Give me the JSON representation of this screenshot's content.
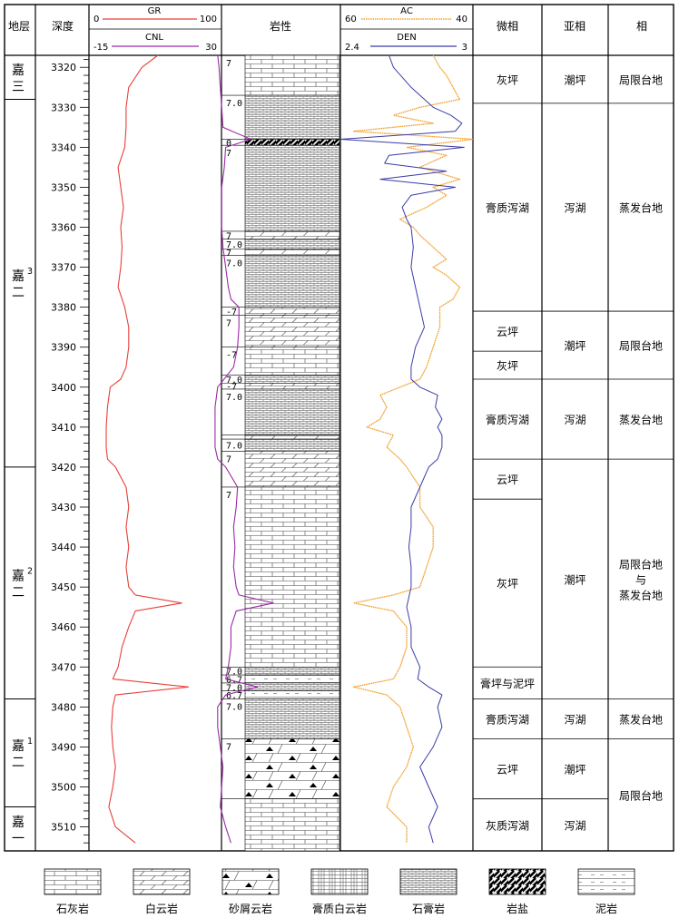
{
  "headers": {
    "stratum": "地层",
    "depth": "深度",
    "lithology": "岩性",
    "microfacies": "微相",
    "subfacies": "亚相",
    "facies": "相"
  },
  "colors": {
    "gr": "#e8403a",
    "cnl": "#9b2aa6",
    "ac": "#f2a12e",
    "den": "#3b3ba8"
  },
  "chart_data": {
    "type": "line",
    "depth_axis": {
      "range": [
        3317,
        3516
      ],
      "ticks": [
        3320,
        3330,
        3340,
        3350,
        3360,
        3370,
        3380,
        3390,
        3400,
        3410,
        3420,
        3430,
        3440,
        3450,
        3460,
        3470,
        3480,
        3490,
        3500,
        3510
      ]
    },
    "track1": {
      "series": [
        {
          "name": "GR",
          "scale": [
            0,
            100
          ],
          "scale_labels": [
            "0",
            "100"
          ]
        },
        {
          "name": "CNL",
          "scale": [
            -15,
            30
          ],
          "scale_labels": [
            "-15",
            "30"
          ]
        }
      ]
    },
    "track2": {
      "series": [
        {
          "name": "AC",
          "scale": [
            60,
            40
          ],
          "scale_labels": [
            "60",
            "40"
          ]
        },
        {
          "name": "DEN",
          "scale": [
            2.4,
            3
          ],
          "scale_labels": [
            "2.4",
            "3"
          ]
        }
      ]
    },
    "gr_curve": [
      [
        3317,
        52
      ],
      [
        3320,
        40
      ],
      [
        3325,
        30
      ],
      [
        3330,
        28
      ],
      [
        3335,
        28
      ],
      [
        3340,
        27
      ],
      [
        3345,
        22
      ],
      [
        3350,
        24
      ],
      [
        3355,
        26
      ],
      [
        3360,
        24
      ],
      [
        3365,
        25
      ],
      [
        3370,
        24
      ],
      [
        3375,
        22
      ],
      [
        3380,
        27
      ],
      [
        3385,
        30
      ],
      [
        3390,
        30
      ],
      [
        3395,
        28
      ],
      [
        3398,
        24
      ],
      [
        3400,
        16
      ],
      [
        3405,
        14
      ],
      [
        3410,
        13
      ],
      [
        3415,
        13
      ],
      [
        3418,
        14
      ],
      [
        3420,
        20
      ],
      [
        3425,
        28
      ],
      [
        3430,
        30
      ],
      [
        3435,
        28
      ],
      [
        3440,
        30
      ],
      [
        3445,
        28
      ],
      [
        3450,
        30
      ],
      [
        3452,
        35
      ],
      [
        3454,
        70
      ],
      [
        3456,
        35
      ],
      [
        3460,
        30
      ],
      [
        3465,
        25
      ],
      [
        3470,
        22
      ],
      [
        3473,
        18
      ],
      [
        3475,
        75
      ],
      [
        3477,
        20
      ],
      [
        3480,
        18
      ],
      [
        3485,
        17
      ],
      [
        3490,
        18
      ],
      [
        3495,
        20
      ],
      [
        3500,
        18
      ],
      [
        3505,
        15
      ],
      [
        3510,
        20
      ],
      [
        3514,
        35
      ]
    ],
    "cnl_curve": [
      [
        3317,
        30
      ],
      [
        3320,
        31
      ],
      [
        3325,
        32
      ],
      [
        3330,
        33
      ],
      [
        3335,
        34
      ],
      [
        3338,
        55
      ],
      [
        3340,
        36
      ],
      [
        3345,
        35
      ],
      [
        3350,
        33
      ],
      [
        3355,
        33
      ],
      [
        3360,
        33
      ],
      [
        3365,
        34
      ],
      [
        3370,
        36
      ],
      [
        3375,
        38
      ],
      [
        3378,
        40
      ],
      [
        3380,
        46
      ],
      [
        3385,
        46
      ],
      [
        3390,
        45
      ],
      [
        3395,
        42
      ],
      [
        3400,
        30
      ],
      [
        3405,
        28
      ],
      [
        3410,
        28
      ],
      [
        3415,
        28
      ],
      [
        3418,
        30
      ],
      [
        3420,
        36
      ],
      [
        3425,
        45
      ],
      [
        3430,
        44
      ],
      [
        3435,
        42
      ],
      [
        3440,
        43
      ],
      [
        3445,
        42
      ],
      [
        3450,
        44
      ],
      [
        3452,
        46
      ],
      [
        3454,
        72
      ],
      [
        3456,
        44
      ],
      [
        3460,
        40
      ],
      [
        3465,
        40
      ],
      [
        3470,
        38
      ],
      [
        3473,
        36
      ],
      [
        3475,
        60
      ],
      [
        3477,
        36
      ],
      [
        3480,
        30
      ],
      [
        3485,
        30
      ],
      [
        3490,
        32
      ],
      [
        3495,
        34
      ],
      [
        3500,
        33
      ],
      [
        3505,
        32
      ],
      [
        3510,
        36
      ],
      [
        3514,
        40
      ]
    ],
    "ac_curve": [
      [
        3317,
        46
      ],
      [
        3320,
        45
      ],
      [
        3322,
        44
      ],
      [
        3325,
        43
      ],
      [
        3328,
        42
      ],
      [
        3330,
        48
      ],
      [
        3332,
        52
      ],
      [
        3334,
        46
      ],
      [
        3336,
        58
      ],
      [
        3338,
        40
      ],
      [
        3340,
        50
      ],
      [
        3342,
        44
      ],
      [
        3345,
        48
      ],
      [
        3348,
        42
      ],
      [
        3350,
        46
      ],
      [
        3352,
        44
      ],
      [
        3355,
        47
      ],
      [
        3358,
        51
      ],
      [
        3360,
        49
      ],
      [
        3362,
        48
      ],
      [
        3365,
        46
      ],
      [
        3368,
        44
      ],
      [
        3370,
        46
      ],
      [
        3372,
        44
      ],
      [
        3375,
        42
      ],
      [
        3378,
        43
      ],
      [
        3380,
        45
      ],
      [
        3385,
        45
      ],
      [
        3390,
        46
      ],
      [
        3395,
        47
      ],
      [
        3398,
        48
      ],
      [
        3400,
        51
      ],
      [
        3402,
        54
      ],
      [
        3405,
        53
      ],
      [
        3408,
        54
      ],
      [
        3410,
        56
      ],
      [
        3412,
        52
      ],
      [
        3415,
        53
      ],
      [
        3418,
        51
      ],
      [
        3420,
        50
      ],
      [
        3425,
        48
      ],
      [
        3430,
        48
      ],
      [
        3435,
        46
      ],
      [
        3440,
        46
      ],
      [
        3445,
        47
      ],
      [
        3450,
        48
      ],
      [
        3452,
        52
      ],
      [
        3454,
        58
      ],
      [
        3456,
        52
      ],
      [
        3460,
        50
      ],
      [
        3465,
        50
      ],
      [
        3470,
        51
      ],
      [
        3473,
        52
      ],
      [
        3475,
        58
      ],
      [
        3477,
        53
      ],
      [
        3480,
        51
      ],
      [
        3485,
        50
      ],
      [
        3490,
        49
      ],
      [
        3495,
        50
      ],
      [
        3500,
        52
      ],
      [
        3505,
        53
      ],
      [
        3510,
        50
      ],
      [
        3514,
        50
      ]
    ],
    "den_curve": [
      [
        3317,
        2.62
      ],
      [
        3320,
        2.64
      ],
      [
        3325,
        2.72
      ],
      [
        3330,
        2.82
      ],
      [
        3332,
        2.9
      ],
      [
        3334,
        2.95
      ],
      [
        3336,
        2.92
      ],
      [
        3338,
        2.4
      ],
      [
        3340,
        2.96
      ],
      [
        3342,
        2.62
      ],
      [
        3344,
        2.6
      ],
      [
        3346,
        2.88
      ],
      [
        3348,
        2.58
      ],
      [
        3350,
        2.92
      ],
      [
        3352,
        2.72
      ],
      [
        3355,
        2.68
      ],
      [
        3358,
        2.7
      ],
      [
        3360,
        2.72
      ],
      [
        3365,
        2.73
      ],
      [
        3370,
        2.72
      ],
      [
        3375,
        2.74
      ],
      [
        3380,
        2.76
      ],
      [
        3385,
        2.78
      ],
      [
        3390,
        2.74
      ],
      [
        3395,
        2.72
      ],
      [
        3398,
        2.72
      ],
      [
        3400,
        2.76
      ],
      [
        3402,
        2.84
      ],
      [
        3405,
        2.83
      ],
      [
        3408,
        2.86
      ],
      [
        3410,
        2.84
      ],
      [
        3412,
        2.86
      ],
      [
        3415,
        2.86
      ],
      [
        3418,
        2.84
      ],
      [
        3420,
        2.8
      ],
      [
        3425,
        2.76
      ],
      [
        3430,
        2.72
      ],
      [
        3435,
        2.72
      ],
      [
        3440,
        2.71
      ],
      [
        3445,
        2.72
      ],
      [
        3450,
        2.72
      ],
      [
        3455,
        2.7
      ],
      [
        3460,
        2.72
      ],
      [
        3465,
        2.72
      ],
      [
        3470,
        2.76
      ],
      [
        3473,
        2.75
      ],
      [
        3475,
        2.8
      ],
      [
        3477,
        2.86
      ],
      [
        3480,
        2.84
      ],
      [
        3485,
        2.86
      ],
      [
        3490,
        2.82
      ],
      [
        3495,
        2.76
      ],
      [
        3500,
        2.8
      ],
      [
        3505,
        2.84
      ],
      [
        3510,
        2.8
      ],
      [
        3514,
        2.82
      ]
    ]
  },
  "strata": [
    {
      "text": "嘉三",
      "sup": "",
      "from": 3317,
      "to": 3328
    },
    {
      "text": "嘉二",
      "sup": "3",
      "from": 3328,
      "to": 3420
    },
    {
      "text": "嘉二",
      "sup": "2",
      "from": 3420,
      "to": 3478
    },
    {
      "text": "嘉二",
      "sup": "1",
      "from": 3478,
      "to": 3505
    },
    {
      "text": "嘉一",
      "sup": "",
      "from": 3505,
      "to": 3516
    }
  ],
  "lithology": {
    "intervals": [
      {
        "from": 3317,
        "to": 3327,
        "type": "limestone",
        "label": "7"
      },
      {
        "from": 3327,
        "to": 3338,
        "type": "gypsum-rock",
        "label": "7.0"
      },
      {
        "from": 3338,
        "to": 3339.5,
        "type": "rock-salt",
        "label": "0"
      },
      {
        "from": 3339.5,
        "to": 3361,
        "type": "gypsum-rock",
        "label": "7"
      },
      {
        "from": 3361,
        "to": 3363,
        "type": "dolomite",
        "label": "7"
      },
      {
        "from": 3363,
        "to": 3365.5,
        "type": "gypsum-rock",
        "label": "7.0"
      },
      {
        "from": 3365.5,
        "to": 3367,
        "type": "dolomite",
        "label": "7"
      },
      {
        "from": 3367,
        "to": 3380,
        "type": "gypsum-rock",
        "label": "7.0"
      },
      {
        "from": 3380,
        "to": 3382,
        "type": "dolomite",
        "label": "-7"
      },
      {
        "from": 3382,
        "to": 3390,
        "type": "dolomite",
        "label": "7"
      },
      {
        "from": 3390,
        "to": 3397,
        "type": "limestone",
        "label": "-7"
      },
      {
        "from": 3397,
        "to": 3399,
        "type": "gypsum-rock",
        "label": "7.0"
      },
      {
        "from": 3399,
        "to": 3400.5,
        "type": "dolomite",
        "label": "-7"
      },
      {
        "from": 3400.5,
        "to": 3412,
        "type": "gypsum-rock",
        "label": "7.0"
      },
      {
        "from": 3412,
        "to": 3413,
        "type": "dolomite",
        "label": ""
      },
      {
        "from": 3413,
        "to": 3416,
        "type": "gypsum-rock",
        "label": "7.0"
      },
      {
        "from": 3416,
        "to": 3425,
        "type": "dolomite",
        "label": "7"
      },
      {
        "from": 3425,
        "to": 3470,
        "type": "limestone",
        "label": "7"
      },
      {
        "from": 3470,
        "to": 3472,
        "type": "gypsum-rock",
        "label": "7.0"
      },
      {
        "from": 3472,
        "to": 3474,
        "type": "mudstone",
        "label": "6.7"
      },
      {
        "from": 3474,
        "to": 3476,
        "type": "gypsum-rock",
        "label": "7.0"
      },
      {
        "from": 3476,
        "to": 3478,
        "type": "mudstone",
        "label": "6.7"
      },
      {
        "from": 3478,
        "to": 3488,
        "type": "gypsum-rock",
        "label": "7.0"
      },
      {
        "from": 3488,
        "to": 3503,
        "type": "dolomite-breccia",
        "label": "7"
      },
      {
        "from": 3503,
        "to": 3516,
        "type": "limestone",
        "label": ""
      }
    ]
  },
  "microfacies": [
    {
      "text": "灰坪",
      "from": 3317,
      "to": 3329
    },
    {
      "text": "膏质泻湖",
      "from": 3329,
      "to": 3381
    },
    {
      "text": "云坪",
      "from": 3381,
      "to": 3391
    },
    {
      "text": "灰坪",
      "from": 3391,
      "to": 3398
    },
    {
      "text": "膏质泻湖",
      "from": 3398,
      "to": 3418
    },
    {
      "text": "云坪",
      "from": 3418,
      "to": 3428
    },
    {
      "text": "灰坪",
      "from": 3428,
      "to": 3470
    },
    {
      "text": "膏坪与泥坪",
      "from": 3470,
      "to": 3478
    },
    {
      "text": "膏质泻湖",
      "from": 3478,
      "to": 3488
    },
    {
      "text": "云坪",
      "from": 3488,
      "to": 3503
    },
    {
      "text": "灰质泻湖",
      "from": 3503,
      "to": 3516
    }
  ],
  "subfacies": [
    {
      "text": "潮坪",
      "from": 3317,
      "to": 3329
    },
    {
      "text": "泻湖",
      "from": 3329,
      "to": 3381
    },
    {
      "text": "潮坪",
      "from": 3381,
      "to": 3398
    },
    {
      "text": "泻湖",
      "from": 3398,
      "to": 3418
    },
    {
      "text": "潮坪",
      "from": 3418,
      "to": 3478
    },
    {
      "text": "泻湖",
      "from": 3478,
      "to": 3488
    },
    {
      "text": "潮坪",
      "from": 3488,
      "to": 3503
    },
    {
      "text": "泻湖",
      "from": 3503,
      "to": 3516
    }
  ],
  "facies": [
    {
      "lines": [
        "局限台地"
      ],
      "from": 3317,
      "to": 3329
    },
    {
      "lines": [
        "蒸发台地"
      ],
      "from": 3329,
      "to": 3381
    },
    {
      "lines": [
        "局限台地"
      ],
      "from": 3381,
      "to": 3398
    },
    {
      "lines": [
        "蒸发台地"
      ],
      "from": 3398,
      "to": 3418
    },
    {
      "lines": [
        "局限台地",
        "与",
        "蒸发台地"
      ],
      "from": 3418,
      "to": 3478
    },
    {
      "lines": [
        "蒸发台地"
      ],
      "from": 3478,
      "to": 3488
    },
    {
      "lines": [
        "局限台地"
      ],
      "from": 3488,
      "to": 3516
    }
  ],
  "legend": [
    {
      "type": "limestone",
      "label": "石灰岩"
    },
    {
      "type": "dolomite",
      "label": "白云岩"
    },
    {
      "type": "dolomite-breccia",
      "label": "砂屑云岩"
    },
    {
      "type": "gypsum-dolomite",
      "label": "膏质白云岩"
    },
    {
      "type": "gypsum-rock",
      "label": "石膏岩"
    },
    {
      "type": "rock-salt",
      "label": "岩盐"
    },
    {
      "type": "mudstone",
      "label": "泥岩"
    }
  ]
}
